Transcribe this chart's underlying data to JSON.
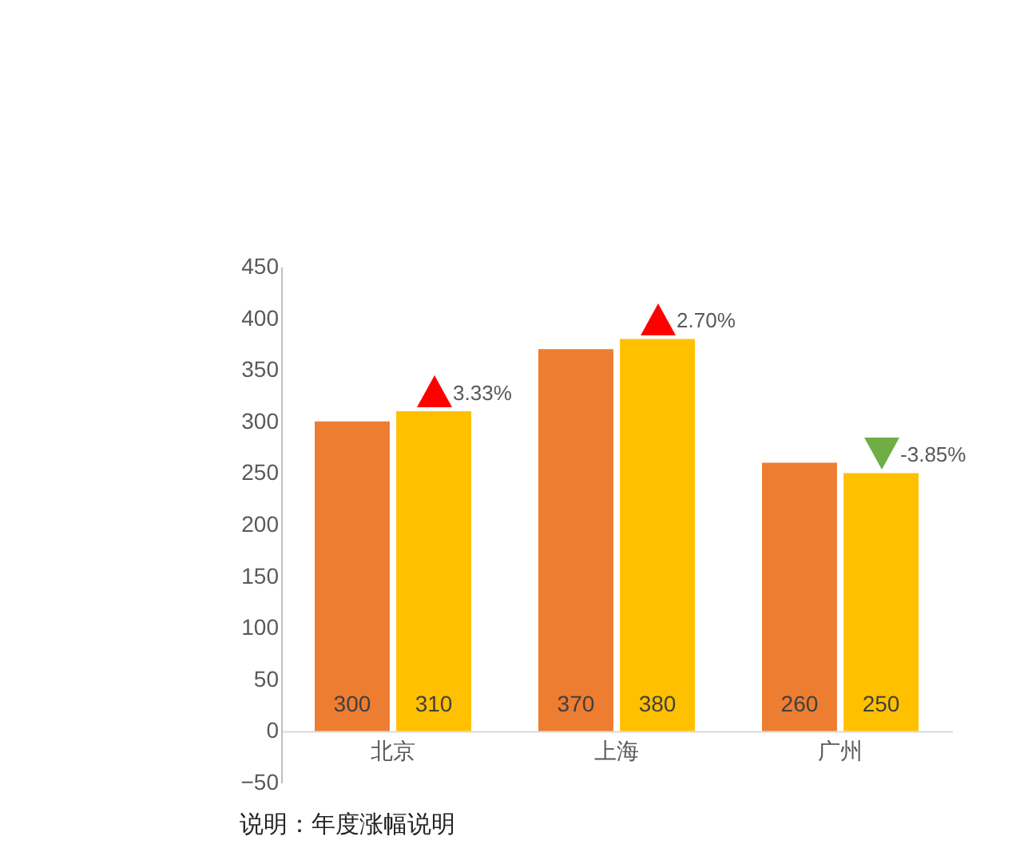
{
  "chart_data": {
    "type": "bar",
    "categories": [
      "北京",
      "上海",
      "广州"
    ],
    "series": [
      {
        "color": "#ed7d31",
        "values": [
          300,
          370,
          260
        ]
      },
      {
        "color": "#ffc000",
        "values": [
          310,
          380,
          250
        ]
      }
    ],
    "ylim": [
      -50,
      450
    ],
    "yticks": [
      -50,
      0,
      50,
      100,
      150,
      200,
      250,
      300,
      350,
      400,
      450
    ],
    "grid": false,
    "legend": false,
    "data_labels": true,
    "annotations": [
      {
        "text": "3.33%",
        "x": "北京",
        "y": 310
      },
      {
        "text": "2.70%",
        "x": "上海",
        "y": 380
      },
      {
        "text": "-3.85%",
        "x": "广州",
        "y": 250
      },
      "说明：年度涨幅说明"
    ]
  }
}
